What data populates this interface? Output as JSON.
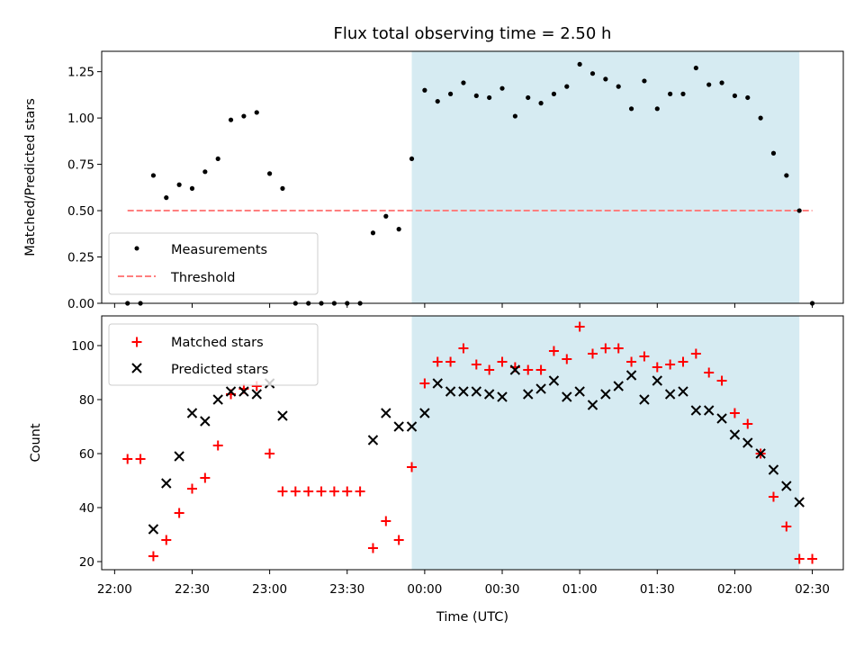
{
  "chart_data": [
    {
      "type": "scatter",
      "title": "Flux total observing time = 2.50 h",
      "xlabel": "",
      "ylabel": "Matched/Predicted stars",
      "ylim": [
        0,
        1.36
      ],
      "yticks": [
        0.0,
        0.25,
        0.5,
        0.75,
        1.0,
        1.25
      ],
      "ytick_labels": [
        "0.00",
        "0.25",
        "0.50",
        "0.75",
        "1.00",
        "1.25"
      ],
      "xticks_shown": false,
      "highlight_span": {
        "start": "23:55",
        "end": "02:25",
        "color": "#add8e6"
      },
      "threshold": {
        "name": "Threshold",
        "value": 0.5,
        "x_start": "22:05",
        "x_end": "02:30",
        "color": "#ff7f7f"
      },
      "series": [
        {
          "name": "Measurements",
          "color": "#000000",
          "points": [
            [
              "22:05",
              0.0
            ],
            [
              "22:10",
              0.0
            ],
            [
              "22:15",
              0.69
            ],
            [
              "22:20",
              0.57
            ],
            [
              "22:25",
              0.64
            ],
            [
              "22:30",
              0.62
            ],
            [
              "22:35",
              0.71
            ],
            [
              "22:40",
              0.78
            ],
            [
              "22:45",
              0.99
            ],
            [
              "22:50",
              1.01
            ],
            [
              "22:55",
              1.03
            ],
            [
              "23:00",
              0.7
            ],
            [
              "23:05",
              0.62
            ],
            [
              "23:10",
              0.0
            ],
            [
              "23:15",
              0.0
            ],
            [
              "23:20",
              0.0
            ],
            [
              "23:25",
              0.0
            ],
            [
              "23:30",
              0.0
            ],
            [
              "23:35",
              0.0
            ],
            [
              "23:40",
              0.38
            ],
            [
              "23:45",
              0.47
            ],
            [
              "23:50",
              0.4
            ],
            [
              "23:55",
              0.78
            ],
            [
              "00:00",
              1.15
            ],
            [
              "00:05",
              1.09
            ],
            [
              "00:10",
              1.13
            ],
            [
              "00:15",
              1.19
            ],
            [
              "00:20",
              1.12
            ],
            [
              "00:25",
              1.11
            ],
            [
              "00:30",
              1.16
            ],
            [
              "00:35",
              1.01
            ],
            [
              "00:40",
              1.11
            ],
            [
              "00:45",
              1.08
            ],
            [
              "00:50",
              1.13
            ],
            [
              "00:55",
              1.17
            ],
            [
              "01:00",
              1.29
            ],
            [
              "01:05",
              1.24
            ],
            [
              "01:10",
              1.21
            ],
            [
              "01:15",
              1.17
            ],
            [
              "01:20",
              1.05
            ],
            [
              "01:25",
              1.2
            ],
            [
              "01:30",
              1.05
            ],
            [
              "01:35",
              1.13
            ],
            [
              "01:40",
              1.13
            ],
            [
              "01:45",
              1.27
            ],
            [
              "01:50",
              1.18
            ],
            [
              "01:55",
              1.19
            ],
            [
              "02:00",
              1.12
            ],
            [
              "02:05",
              1.11
            ],
            [
              "02:10",
              1.0
            ],
            [
              "02:15",
              0.81
            ],
            [
              "02:20",
              0.69
            ],
            [
              "02:25",
              0.5
            ],
            [
              "02:30",
              0.0
            ]
          ]
        }
      ],
      "legend": {
        "position": "lower-left",
        "entries": [
          "Measurements",
          "Threshold"
        ]
      },
      "grid": false
    },
    {
      "type": "scatter",
      "title": "",
      "xlabel": "Time (UTC)",
      "ylabel": "Count",
      "ylim": [
        17,
        111
      ],
      "yticks": [
        20,
        40,
        60,
        80,
        100
      ],
      "ytick_labels": [
        "20",
        "40",
        "60",
        "80",
        "100"
      ],
      "xlim": [
        "21:55",
        "02:42"
      ],
      "xticks": [
        "22:00",
        "22:30",
        "23:00",
        "23:30",
        "00:00",
        "00:30",
        "01:00",
        "01:30",
        "02:00",
        "02:30"
      ],
      "highlight_span": {
        "start": "23:55",
        "end": "02:25",
        "color": "#add8e6"
      },
      "series": [
        {
          "name": "Matched stars",
          "marker": "+",
          "color": "#ff0000",
          "points": [
            [
              "22:05",
              58
            ],
            [
              "22:10",
              58
            ],
            [
              "22:15",
              22
            ],
            [
              "22:20",
              28
            ],
            [
              "22:25",
              38
            ],
            [
              "22:30",
              47
            ],
            [
              "22:35",
              51
            ],
            [
              "22:40",
              63
            ],
            [
              "22:45",
              82
            ],
            [
              "22:50",
              84
            ],
            [
              "22:55",
              85
            ],
            [
              "23:00",
              60
            ],
            [
              "23:05",
              46
            ],
            [
              "23:10",
              46
            ],
            [
              "23:15",
              46
            ],
            [
              "23:20",
              46
            ],
            [
              "23:25",
              46
            ],
            [
              "23:30",
              46
            ],
            [
              "23:35",
              46
            ],
            [
              "23:40",
              25
            ],
            [
              "23:45",
              35
            ],
            [
              "23:50",
              28
            ],
            [
              "23:55",
              55
            ],
            [
              "00:00",
              86
            ],
            [
              "00:05",
              94
            ],
            [
              "00:10",
              94
            ],
            [
              "00:15",
              99
            ],
            [
              "00:20",
              93
            ],
            [
              "00:25",
              91
            ],
            [
              "00:30",
              94
            ],
            [
              "00:35",
              92
            ],
            [
              "00:40",
              91
            ],
            [
              "00:45",
              91
            ],
            [
              "00:50",
              98
            ],
            [
              "00:55",
              95
            ],
            [
              "01:00",
              107
            ],
            [
              "01:05",
              97
            ],
            [
              "01:10",
              99
            ],
            [
              "01:15",
              99
            ],
            [
              "01:20",
              94
            ],
            [
              "01:25",
              96
            ],
            [
              "01:30",
              92
            ],
            [
              "01:35",
              93
            ],
            [
              "01:40",
              94
            ],
            [
              "01:45",
              97
            ],
            [
              "01:50",
              90
            ],
            [
              "01:55",
              87
            ],
            [
              "02:00",
              75
            ],
            [
              "02:05",
              71
            ],
            [
              "02:10",
              60
            ],
            [
              "02:15",
              44
            ],
            [
              "02:20",
              33
            ],
            [
              "02:25",
              21
            ],
            [
              "02:30",
              21
            ]
          ]
        },
        {
          "name": "Predicted stars",
          "marker": "x",
          "color": "#000000",
          "points": [
            [
              "22:15",
              32
            ],
            [
              "22:20",
              49
            ],
            [
              "22:25",
              59
            ],
            [
              "22:30",
              75
            ],
            [
              "22:35",
              72
            ],
            [
              "22:40",
              80
            ],
            [
              "22:45",
              83
            ],
            [
              "22:50",
              83
            ],
            [
              "22:55",
              82
            ],
            [
              "23:00",
              86
            ],
            [
              "23:05",
              74
            ],
            [
              "23:40",
              65
            ],
            [
              "23:45",
              75
            ],
            [
              "23:50",
              70
            ],
            [
              "23:55",
              70
            ],
            [
              "00:00",
              75
            ],
            [
              "00:05",
              86
            ],
            [
              "00:10",
              83
            ],
            [
              "00:15",
              83
            ],
            [
              "00:20",
              83
            ],
            [
              "00:25",
              82
            ],
            [
              "00:30",
              81
            ],
            [
              "00:35",
              91
            ],
            [
              "00:40",
              82
            ],
            [
              "00:45",
              84
            ],
            [
              "00:50",
              87
            ],
            [
              "00:55",
              81
            ],
            [
              "01:00",
              83
            ],
            [
              "01:05",
              78
            ],
            [
              "01:10",
              82
            ],
            [
              "01:15",
              85
            ],
            [
              "01:20",
              89
            ],
            [
              "01:25",
              80
            ],
            [
              "01:30",
              87
            ],
            [
              "01:35",
              82
            ],
            [
              "01:40",
              83
            ],
            [
              "01:45",
              76
            ],
            [
              "01:50",
              76
            ],
            [
              "01:55",
              73
            ],
            [
              "02:00",
              67
            ],
            [
              "02:05",
              64
            ],
            [
              "02:10",
              60
            ],
            [
              "02:15",
              54
            ],
            [
              "02:20",
              48
            ],
            [
              "02:25",
              42
            ]
          ]
        }
      ],
      "legend": {
        "position": "top-left",
        "entries": [
          "Matched stars",
          "Predicted stars"
        ]
      },
      "grid": false
    }
  ]
}
